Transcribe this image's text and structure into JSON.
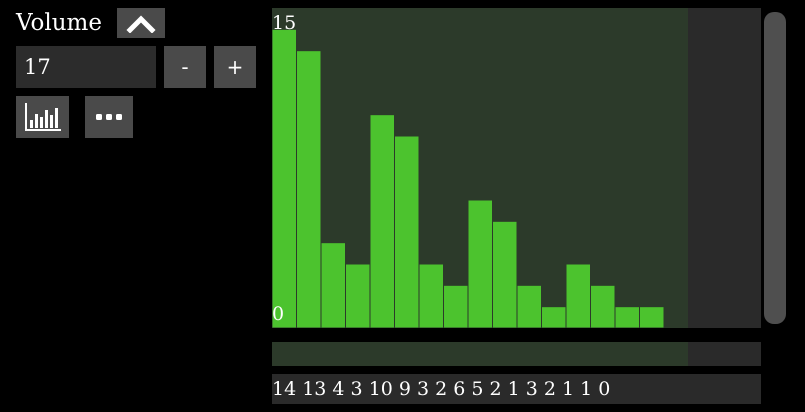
{
  "header": {
    "title": "Volume",
    "collapse_icon": "chevron-up-icon"
  },
  "input": {
    "value": "17",
    "minus_label": "-",
    "plus_label": "+"
  },
  "toolbar": {
    "histogram_icon": "bar-chart-icon",
    "more_icon": "more-dots-icon"
  },
  "colors": {
    "bar": "#4cc32e",
    "bar_outline": "#2c3a2a",
    "plot_bg": "#2c3a2a",
    "panel_bg": "#2a2a2a",
    "button_bg": "#4a4a4a"
  },
  "chart_data": {
    "type": "bar",
    "values": [
      14,
      13,
      4,
      3,
      10,
      9,
      3,
      2,
      6,
      5,
      2,
      1,
      3,
      2,
      1,
      1,
      0
    ],
    "ylim": [
      0,
      15
    ],
    "y_max_label": "15",
    "y_min_label": "0"
  },
  "values_strip": "14 13 4 3 10 9 3 2 6 5 2 1 3 2 1 1 0"
}
